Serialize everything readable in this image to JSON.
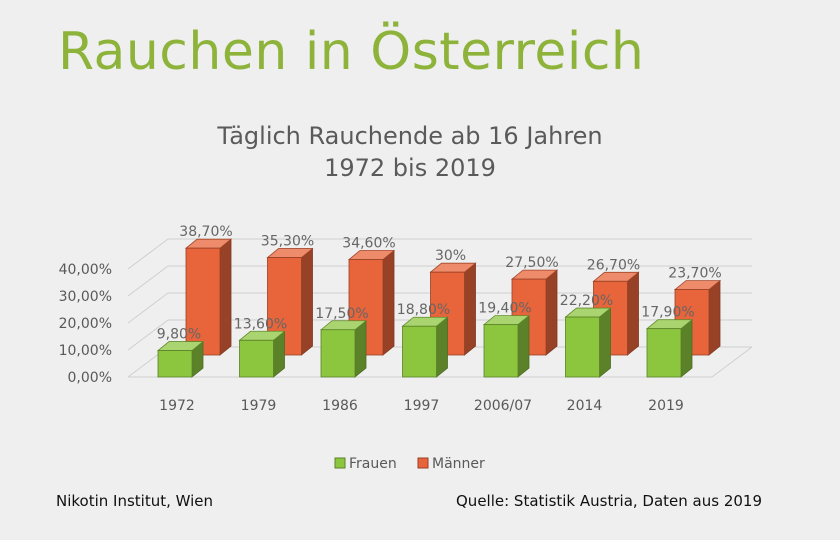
{
  "slide": {
    "title": "Rauchen in Österreich",
    "footer_left": "Nikotin Institut, Wien",
    "footer_right": "Quelle: Statistik Austria, Daten aus 2019"
  },
  "colors": {
    "title": "#8db33a",
    "frauen": "#8cc63f",
    "maenner": "#e8643a"
  },
  "chart_data": {
    "type": "bar",
    "title": "Täglich Rauchende ab 16 Jahren",
    "subtitle": "1972 bis 2019",
    "categories": [
      "1972",
      "1979",
      "1986",
      "1997",
      "2006/07",
      "2014",
      "2019"
    ],
    "series": [
      {
        "name": "Frauen",
        "values": [
          9.8,
          13.6,
          17.5,
          18.8,
          19.4,
          22.2,
          17.9
        ],
        "labels": [
          "9,80%",
          "13,60%",
          "17,50%",
          "18,80%",
          "19,40%",
          "22,20%",
          "17,90%"
        ]
      },
      {
        "name": "Männer",
        "values": [
          38.7,
          35.3,
          34.6,
          30,
          27.5,
          26.7,
          23.7
        ],
        "labels": [
          "38,70%",
          "35,30%",
          "34,60%",
          "30%",
          "27,50%",
          "26,70%",
          "23,70%"
        ]
      }
    ],
    "ylim": [
      0,
      40
    ],
    "yticks": [
      "0,00%",
      "10,00%",
      "20,00%",
      "30,00%",
      "40,00%"
    ],
    "legend_position": "bottom",
    "grid": true,
    "style": "3d-column"
  }
}
